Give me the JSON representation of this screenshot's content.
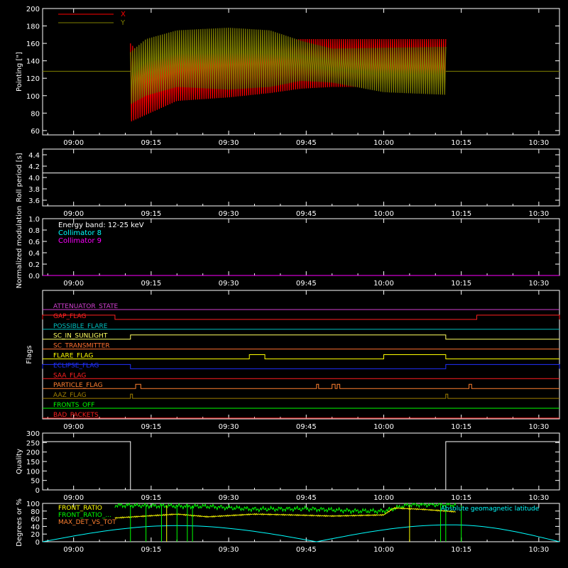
{
  "time_ticks": [
    "09:00",
    "09:15",
    "09:30",
    "09:45",
    "10:00",
    "10:15",
    "10:30"
  ],
  "chart_data": [
    {
      "type": "line",
      "ylabel": "Pointing [\"]",
      "ylim": [
        55,
        200
      ],
      "yticks": [
        60,
        80,
        100,
        120,
        140,
        160,
        180,
        200
      ],
      "series": [
        {
          "name": "X",
          "color": "#ff0000",
          "envelope": {
            "t": [
              "09:11",
              "09:14",
              "09:20",
              "09:30",
              "09:38",
              "09:44",
              "09:50",
              "10:00",
              "10:12"
            ],
            "min": [
              70,
              78,
              94,
              98,
              103,
              108,
              110,
              110,
              110
            ],
            "max": [
              160,
              140,
              150,
              160,
              162,
              165,
              165,
              165,
              165
            ]
          }
        },
        {
          "name": "Y",
          "color": "#808000",
          "envelope": {
            "t": [
              "09:11",
              "09:14",
              "09:20",
              "09:30",
              "09:38",
              "09:44",
              "09:50",
              "10:00",
              "10:12"
            ],
            "min": [
              90,
              100,
              110,
              107,
              110,
              117,
              115,
              104,
              101
            ],
            "max": [
              150,
              165,
              175,
              178,
              175,
              163,
              154,
              155,
              156
            ]
          },
          "baseline": 128
        }
      ]
    },
    {
      "type": "line",
      "ylabel": "Roll period [s]",
      "ylim": [
        3.5,
        4.5
      ],
      "yticks": [
        "3.6",
        "3.8",
        "4.0",
        "4.2",
        "4.4"
      ],
      "series": [
        {
          "color": "#ffffff",
          "value": 4.08
        }
      ]
    },
    {
      "type": "line",
      "ylabel": "Normalized modulation",
      "ylim": [
        0,
        1
      ],
      "yticks": [
        "0.0",
        "0.2",
        "0.4",
        "0.6",
        "0.8",
        "1.0"
      ],
      "legend": [
        "Energy band: 12-25 keV",
        "Collimator 8",
        "Collimator 9"
      ],
      "legend_colors": [
        "#ffffff",
        "#00ffff",
        "#ff00ff"
      ],
      "series": [
        {
          "color": "#ff00ff",
          "value": 0
        }
      ]
    },
    {
      "type": "line",
      "ylabel": "Flags",
      "flags": [
        {
          "name": "ATTENUATOR_STATE",
          "color": "#d040d0",
          "high": []
        },
        {
          "name": "GAP_FLAG",
          "color": "#ff2020",
          "high": [
            [
              "08:54",
              "09:08"
            ],
            [
              "10:18",
              "10:34"
            ]
          ]
        },
        {
          "name": "POSSIBLE_FLARE",
          "color": "#00c0c0",
          "high": []
        },
        {
          "name": "SC_IN_SUNLIGHT",
          "color": "#ffff60",
          "high": [
            [
              "09:11",
              "10:12"
            ]
          ]
        },
        {
          "name": "SC_TRANSMITTER",
          "color": "#ff7030",
          "high": []
        },
        {
          "name": "FLARE_FLAG",
          "color": "#ffff00",
          "high": [
            [
              "09:34",
              "09:37"
            ],
            [
              "10:00",
              "10:12"
            ]
          ]
        },
        {
          "name": "ECLIPSE_FLAG",
          "color": "#2030ff",
          "high": [
            [
              "08:54",
              "09:11"
            ],
            [
              "10:12",
              "10:34"
            ]
          ]
        },
        {
          "name": "SAA_FLAG",
          "color": "#ff2020",
          "high": []
        },
        {
          "name": "PARTICLE_FLAG",
          "color": "#ff8030",
          "high": [
            [
              "09:12",
              "09:13"
            ],
            [
              "09:47",
              "09:47.4"
            ],
            [
              "09:50",
              "09:50.6"
            ],
            [
              "09:51",
              "09:51.5"
            ],
            [
              "10:16.5",
              "10:17"
            ]
          ]
        },
        {
          "name": "AAZ_FLAG",
          "color": "#a08000",
          "high": [
            [
              "09:11",
              "09:11.4"
            ],
            [
              "10:12",
              "10:12.4"
            ]
          ]
        },
        {
          "name": "FRONTS_OFF",
          "color": "#00ff00",
          "high": []
        },
        {
          "name": "BAD_PACKETS",
          "color": "#ff2020",
          "high": []
        }
      ]
    },
    {
      "type": "line",
      "ylabel": "Quality",
      "ylim": [
        0,
        300
      ],
      "yticks": [
        0,
        50,
        100,
        150,
        200,
        250,
        300
      ],
      "series": [
        {
          "color": "#ffffff",
          "steps": [
            [
              "08:54",
              255
            ],
            [
              "09:11",
              0
            ],
            [
              "10:12",
              255
            ],
            [
              "10:34",
              255
            ]
          ]
        }
      ]
    },
    {
      "type": "line",
      "ylabel": "Degrees or %",
      "ylim": [
        0,
        100
      ],
      "yticks": [
        0,
        20,
        40,
        60,
        80,
        100
      ],
      "legend": [
        "FRONT_RATIO",
        "FRONT_RATIO_...",
        "MAX_DET_VS_TOT",
        "Absolute geomagnetic latitude"
      ],
      "legend_colors": [
        "#ffff00",
        "#00ff00",
        "#ff8030",
        "#00ffff"
      ],
      "series": [
        {
          "name": "Absolute geomagnetic latitude",
          "color": "#00ffff",
          "points": [
            [
              "08:54",
              0
            ],
            [
              "09:20",
              42
            ],
            [
              "09:47",
              0
            ],
            [
              "10:13",
              44
            ],
            [
              "10:34",
              0
            ]
          ]
        },
        {
          "name": "FRONT_RATIO",
          "color": "#ffff00",
          "points": [
            [
              "09:08",
              62
            ],
            [
              "09:20",
              72
            ],
            [
              "09:26",
              65
            ],
            [
              "09:35",
              72
            ],
            [
              "09:42",
              70
            ],
            [
              "09:50",
              67
            ],
            [
              "10:00",
              70
            ],
            [
              "10:02",
              88
            ],
            [
              "10:08",
              84
            ],
            [
              "10:14",
              78
            ]
          ]
        },
        {
          "name": "FRONT_RATIO_...",
          "color": "#00ff00",
          "points": [
            [
              "09:08",
              95
            ],
            [
              "09:26",
              92
            ],
            [
              "09:35",
              85
            ],
            [
              "09:45",
              86
            ],
            [
              "09:55",
              80
            ],
            [
              "10:00",
              80
            ],
            [
              "10:05",
              97
            ],
            [
              "10:14",
              96
            ]
          ]
        }
      ]
    }
  ]
}
